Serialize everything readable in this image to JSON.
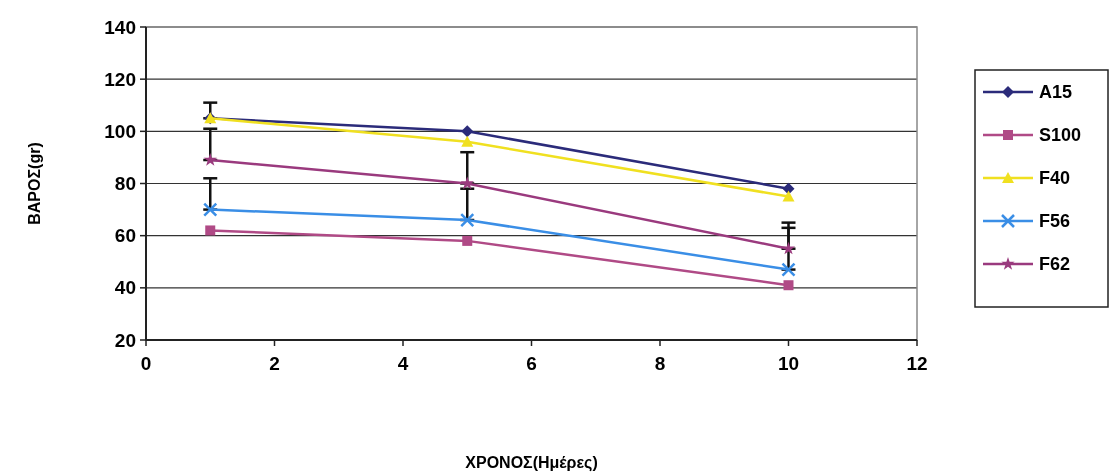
{
  "chart_data": {
    "type": "line",
    "xlabel": "ΧΡΟΝΟΣ(Ημέρες)",
    "ylabel": "ΒΑΡΟΣ(gr)",
    "x": [
      1,
      5,
      10
    ],
    "xlim": [
      0,
      12
    ],
    "xticks": [
      0,
      2,
      4,
      6,
      8,
      10,
      12
    ],
    "ylim": [
      20,
      140
    ],
    "yticks": [
      20,
      40,
      60,
      80,
      100,
      120,
      140
    ],
    "grid": "y",
    "legend": "right",
    "series": [
      {
        "name": "A15",
        "color": "#2b2b7a",
        "marker": "diamond",
        "values": [
          105,
          100,
          78
        ]
      },
      {
        "name": "S100",
        "color": "#b04a86",
        "marker": "square",
        "values": [
          62,
          58,
          41
        ]
      },
      {
        "name": "F40",
        "color": "#f0e020",
        "marker": "triangle",
        "values": [
          105,
          96,
          75
        ],
        "errors": [
          [
            105,
            111
          ],
          null,
          null
        ]
      },
      {
        "name": "F56",
        "color": "#3a8ee6",
        "marker": "cross",
        "values": [
          70,
          66,
          47
        ],
        "errors": [
          [
            70,
            82
          ],
          [
            66,
            78
          ],
          [
            47,
            63
          ]
        ]
      },
      {
        "name": "F62",
        "color": "#9a3a7e",
        "marker": "star",
        "values": [
          89,
          80,
          55
        ],
        "errors": [
          [
            89,
            101
          ],
          [
            80,
            92
          ],
          [
            55,
            65
          ]
        ]
      }
    ]
  }
}
